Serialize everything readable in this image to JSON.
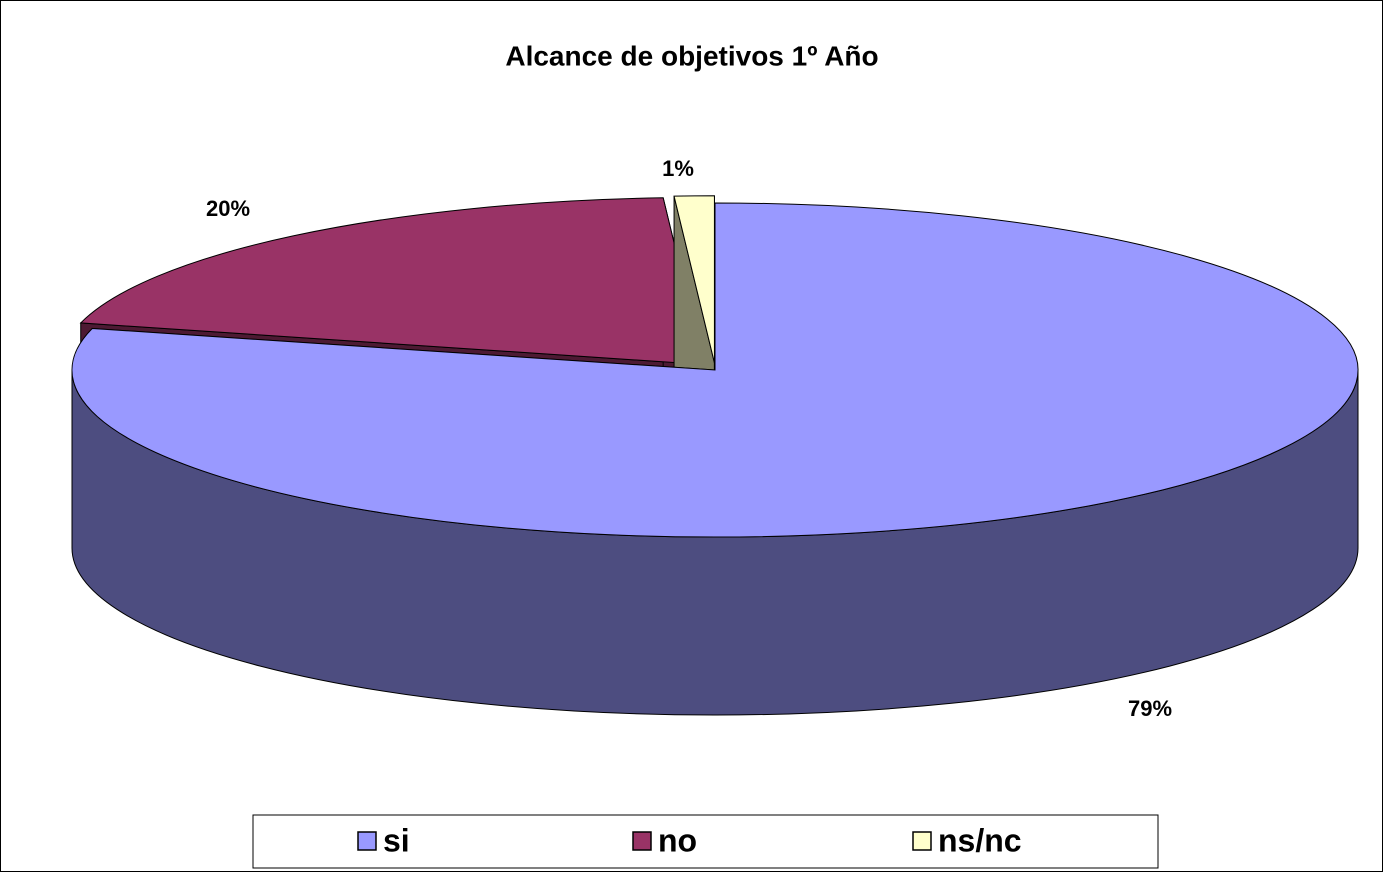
{
  "chart_data": {
    "type": "pie3d",
    "title": "Alcance de objetivos 1º Año",
    "categories": [
      "si",
      "no",
      "ns/nc"
    ],
    "values": [
      79,
      20,
      1
    ],
    "value_labels": [
      "79%",
      "20%",
      "1%"
    ],
    "colors": [
      "#9999ff",
      "#993366",
      "#ffffcc"
    ],
    "legend": "bottom"
  }
}
